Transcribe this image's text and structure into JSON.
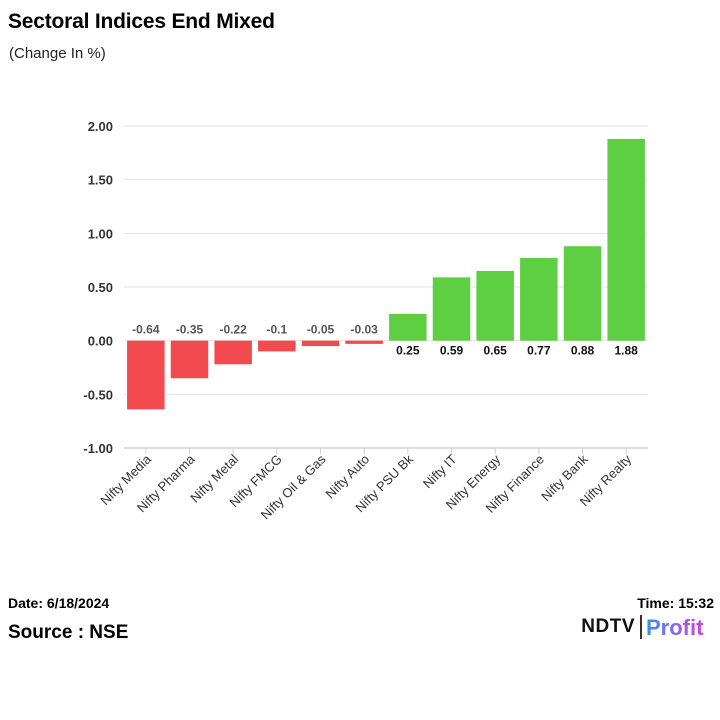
{
  "header": {
    "title": "Sectoral Indices End Mixed",
    "subtitle": "(Change In %)"
  },
  "footer": {
    "date": "Date: 6/18/2024",
    "time": "Time: 15:32",
    "source": "Source : NSE",
    "brand_left": "NDTV",
    "brand_right": "Profit"
  },
  "colors": {
    "negative": "#f24a4f",
    "positive": "#5ecf42",
    "brand_gradient_start": "#3d8bff",
    "brand_gradient_end": "#d83fd8"
  },
  "chart_data": {
    "type": "bar",
    "title": "Sectoral Indices End Mixed",
    "subtitle": "(Change In %)",
    "xlabel": "",
    "ylabel": "",
    "categories": [
      "Nifty Media",
      "Nifty Pharma",
      "Nifty Metal",
      "Nifty FMCG",
      "Nifty Oil & Gas",
      "Nifty Auto",
      "Nifty PSU Bk",
      "Nifty IT",
      "Nifty Energy",
      "Nifty Finance",
      "Nifty Bank",
      "Nifty Realty"
    ],
    "values": [
      -0.64,
      -0.35,
      -0.22,
      -0.1,
      -0.05,
      -0.03,
      0.25,
      0.59,
      0.65,
      0.77,
      0.88,
      1.88
    ],
    "value_labels": [
      "-0.64",
      "-0.35",
      "-0.22",
      "-0.1",
      "-0.05",
      "-0.03",
      "0.25",
      "0.59",
      "0.65",
      "0.77",
      "0.88",
      "1.88"
    ],
    "ylim": [
      -1.0,
      2.0
    ],
    "yticks": [
      "-1.00",
      "-0.50",
      "0.00",
      "0.50",
      "1.00",
      "1.50",
      "2.00"
    ],
    "grid": true,
    "legend": "none"
  }
}
